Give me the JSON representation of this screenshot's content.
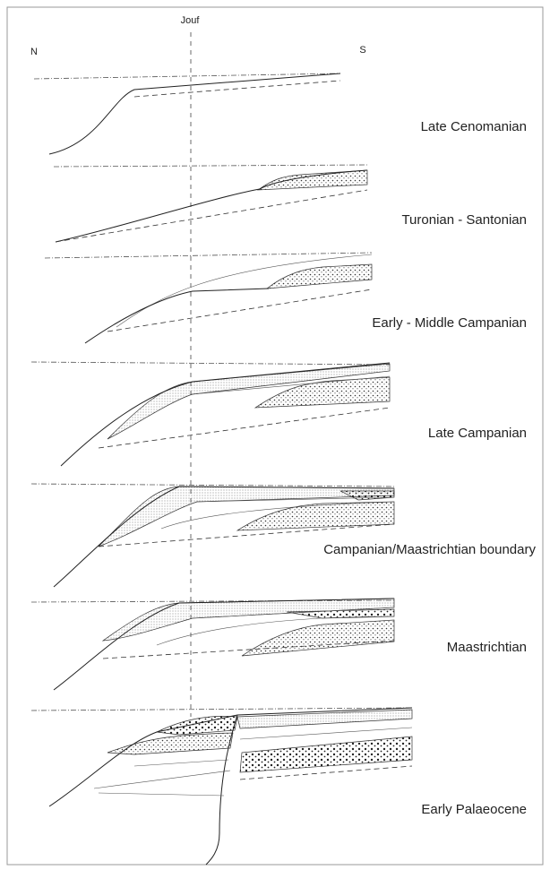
{
  "header": {
    "well": "Jouf",
    "north": "N",
    "south": "S"
  },
  "panels": [
    {
      "label": "Late Cenomanian"
    },
    {
      "label": "Turonian - Santonian"
    },
    {
      "label": "Early - Middle Campanian"
    },
    {
      "label": "Late Campanian"
    },
    {
      "label": "Campanian/Maastrichtian boundary"
    },
    {
      "label": "Maastrichtian"
    },
    {
      "label": "Early Palaeocene"
    }
  ]
}
